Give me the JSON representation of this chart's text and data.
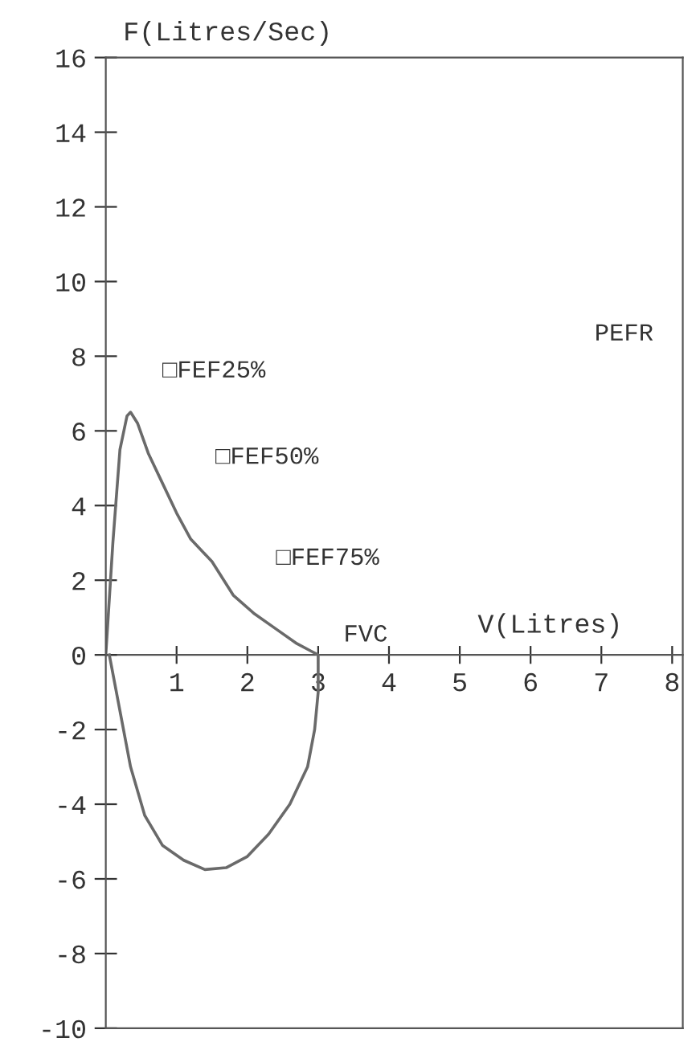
{
  "chart_data": {
    "type": "line",
    "xlabel": "V(Litres)",
    "ylabel": "F(Litres/Sec)",
    "series": [
      {
        "color": "#6a6a6a",
        "x": [
          0,
          0.1,
          0.2,
          0.3,
          0.35,
          0.45,
          0.6,
          0.8,
          1.0,
          1.2,
          1.5,
          1.8,
          2.1,
          2.4,
          2.7,
          2.9,
          3.0,
          3.0,
          2.95,
          2.85,
          2.6,
          2.3,
          2.0,
          1.7,
          1.4,
          1.1,
          0.8,
          0.55,
          0.35,
          0.2,
          0.05
        ],
        "values": [
          0,
          3,
          5.5,
          6.4,
          6.5,
          6.2,
          5.4,
          4.6,
          3.8,
          3.1,
          2.5,
          1.6,
          1.1,
          0.7,
          0.3,
          0.1,
          0,
          -1,
          -2,
          -3,
          -4,
          -4.8,
          -5.4,
          -5.7,
          -5.75,
          -5.5,
          -5.1,
          -4.3,
          -3.0,
          -1.5,
          0
        ]
      }
    ],
    "annotations": [
      "□FEF25%",
      "□FEF50%",
      "□FEF75%",
      "PEFR",
      "FVC"
    ],
    "xlim": [
      0,
      8.15
    ],
    "xticks": [
      1,
      2,
      3,
      4,
      5,
      6,
      7,
      8
    ],
    "ylim": [
      -10,
      16
    ],
    "yticks": [
      -10,
      -8,
      -6,
      -4,
      -2,
      0,
      2,
      4,
      6,
      8,
      10,
      12,
      14,
      16
    ],
    "grid": false,
    "legend": false,
    "marker": "none",
    "line_style": "solid"
  }
}
